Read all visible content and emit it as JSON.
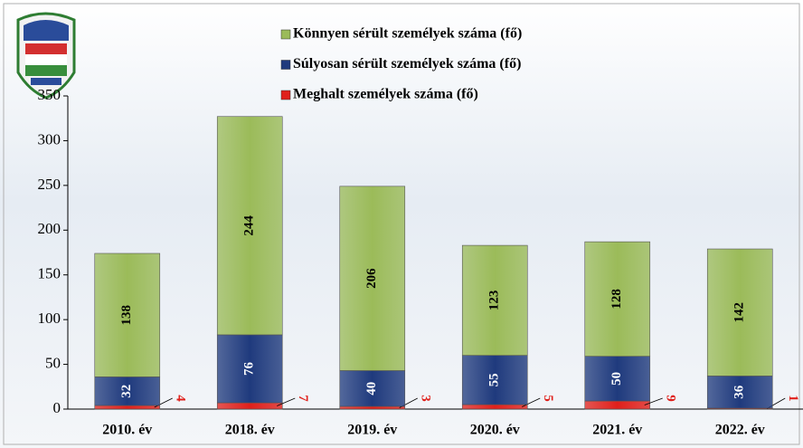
{
  "chart_data": {
    "type": "stacked-bar",
    "categories": [
      "2010. év",
      "2018. év",
      "2019. év",
      "2020. év",
      "2021. év",
      "2022. év"
    ],
    "series": [
      {
        "name": "Könnyen sérült személyek száma (fő)",
        "color": "#9bbb59",
        "values": [
          138,
          244,
          206,
          123,
          128,
          142
        ]
      },
      {
        "name": "Súlyosan sérült személyek száma (fő)",
        "color": "#1f3a7d",
        "values": [
          32,
          76,
          40,
          55,
          50,
          36
        ]
      },
      {
        "name": "Meghalt személyek száma (fő)",
        "color": "#e0201b",
        "values": [
          4,
          7,
          3,
          5,
          9,
          1
        ]
      }
    ],
    "ylim": [
      0,
      350
    ],
    "yticks": [
      0,
      50,
      100,
      150,
      200,
      250,
      300,
      350
    ],
    "grid": false,
    "legend": "top"
  }
}
